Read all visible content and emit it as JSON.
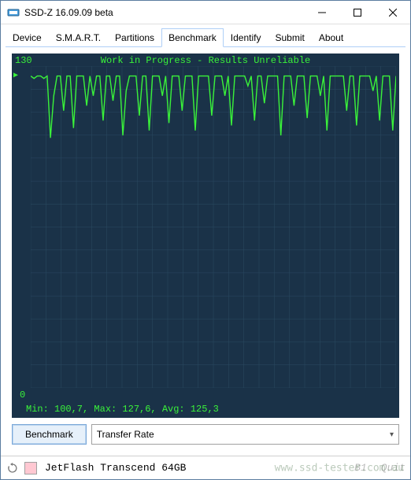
{
  "window": {
    "title": "SSD-Z 16.09.09 beta"
  },
  "tabs": {
    "items": [
      "Device",
      "S.M.A.R.T.",
      "Partitions",
      "Benchmark",
      "Identify",
      "Submit",
      "About"
    ],
    "active_index": 3
  },
  "chart": {
    "type": "line",
    "banner": "Work in Progress - Results Unreliable",
    "y_max_label": "130",
    "y_zero_label": "0",
    "stats_text": "Min: 100,7, Max: 127,6, Avg: 125,3",
    "ylim": [
      0,
      130
    ],
    "background_color": "#1a3248",
    "line_color": "#3af23a",
    "grid_color": "#2a4a62",
    "text_color": "#3af23a",
    "baseline_y": 126,
    "values": [
      126,
      125,
      126,
      126,
      125,
      126,
      101,
      118,
      126,
      126,
      112,
      126,
      126,
      105,
      126,
      126,
      126,
      114,
      126,
      118,
      126,
      126,
      108,
      126,
      126,
      116,
      126,
      126,
      102,
      120,
      126,
      126,
      126,
      110,
      126,
      126,
      104,
      126,
      126,
      126,
      118,
      126,
      107,
      126,
      126,
      126,
      112,
      126,
      126,
      126,
      104,
      126,
      126,
      126,
      126,
      110,
      126,
      126,
      126,
      118,
      126,
      106,
      126,
      126,
      126,
      126,
      122,
      126,
      108,
      126,
      126,
      115,
      126,
      126,
      126,
      126,
      102,
      126,
      126,
      126,
      114,
      126,
      126,
      126,
      109,
      126,
      126,
      126,
      118,
      126,
      104,
      126,
      126,
      126,
      126,
      126,
      112,
      126,
      126,
      106,
      126,
      126,
      126,
      126,
      120,
      126,
      108,
      126,
      126,
      126,
      104,
      126
    ]
  },
  "controls": {
    "benchmark_button": "Benchmark",
    "mode_selected": "Transfer Rate"
  },
  "statusbar": {
    "device": "JetFlash Transcend 64GB",
    "swatch_color": "#ffc8d2",
    "right1": "B1",
    "right2": "Quit",
    "watermark": "www.ssd-tester.com.au"
  }
}
